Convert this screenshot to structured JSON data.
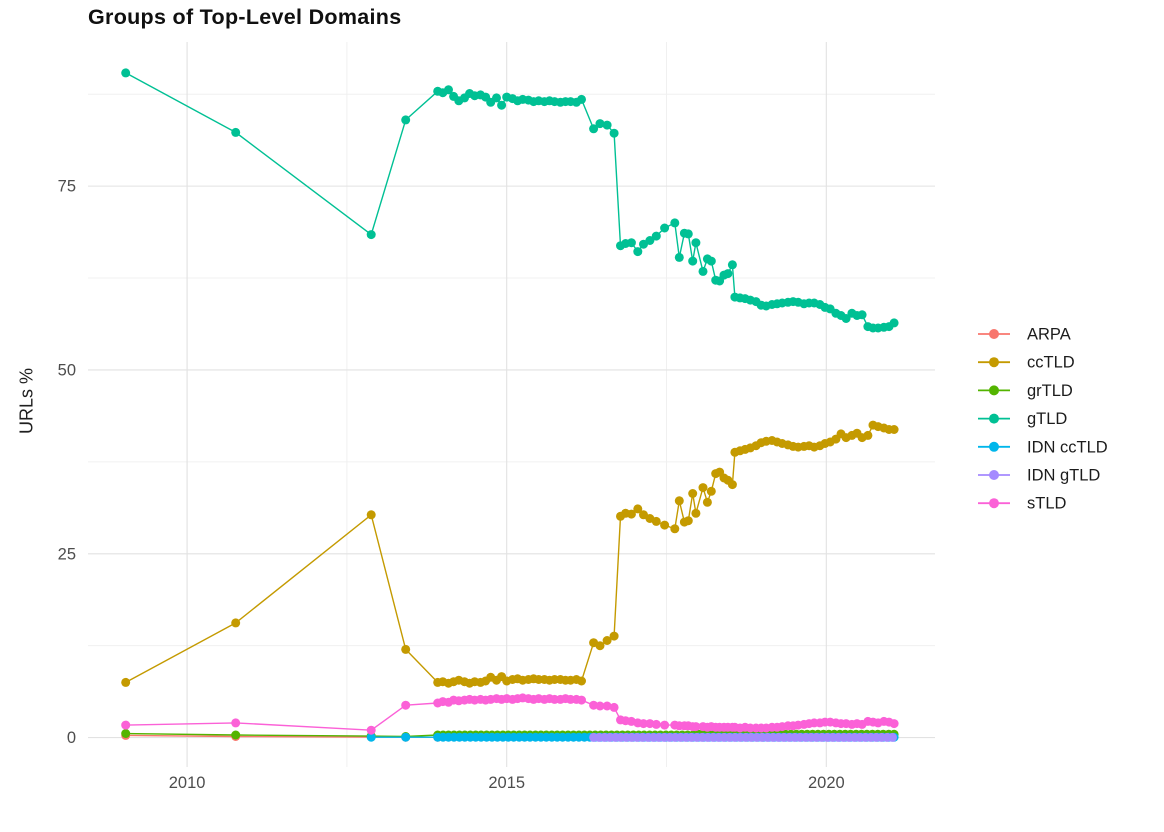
{
  "chart_data": {
    "type": "line",
    "title": "Groups of Top-Level Domains",
    "ylabel": "URLs %",
    "xlabel": "",
    "grid": true,
    "legend_position": "right",
    "x_ticks": [
      {
        "v": 2010,
        "label": "2010"
      },
      {
        "v": 2015,
        "label": "2015"
      },
      {
        "v": 2020,
        "label": "2020"
      }
    ],
    "x_minor_ticks": [
      2012.5,
      2017.5
    ],
    "y_ticks": [
      {
        "v": 0,
        "label": "0"
      },
      {
        "v": 25,
        "label": "25"
      },
      {
        "v": 50,
        "label": "50"
      },
      {
        "v": 75,
        "label": "75"
      }
    ],
    "y_minor_ticks": [
      12.5,
      37.5,
      62.5,
      87.5
    ],
    "xlim": [
      2008.45,
      2021.7
    ],
    "ylim": [
      -4.0,
      94.6
    ],
    "series": [
      {
        "name": "ARPA",
        "color": "#F8766D",
        "points": [
          [
            2009.04,
            0.3
          ],
          [
            2010.76,
            0.15
          ],
          [
            2012.88,
            0.08
          ],
          [
            2013.42,
            0.05
          ],
          [
            2013.92,
            0.05
          ]
        ]
      },
      {
        "name": "ccTLD",
        "color": "#C49A00",
        "points": [
          [
            2009.04,
            7.5
          ],
          [
            2010.76,
            15.6
          ],
          [
            2012.88,
            30.3
          ],
          [
            2013.42,
            12.0
          ],
          [
            2013.92,
            7.5
          ],
          [
            2014.0,
            7.6
          ],
          [
            2014.09,
            7.4
          ],
          [
            2014.17,
            7.6
          ],
          [
            2014.25,
            7.8
          ],
          [
            2014.34,
            7.6
          ],
          [
            2014.42,
            7.4
          ],
          [
            2014.5,
            7.6
          ],
          [
            2014.59,
            7.5
          ],
          [
            2014.67,
            7.7
          ],
          [
            2014.75,
            8.2
          ],
          [
            2014.84,
            7.8
          ],
          [
            2014.92,
            8.3
          ],
          [
            2015.0,
            7.7
          ],
          [
            2015.09,
            7.9
          ],
          [
            2015.17,
            8.0
          ],
          [
            2015.25,
            7.8
          ],
          [
            2015.34,
            7.9
          ],
          [
            2015.42,
            8.0
          ],
          [
            2015.5,
            7.9
          ],
          [
            2015.59,
            7.9
          ],
          [
            2015.67,
            7.8
          ],
          [
            2015.75,
            7.9
          ],
          [
            2015.84,
            7.9
          ],
          [
            2015.92,
            7.8
          ],
          [
            2016.0,
            7.8
          ],
          [
            2016.09,
            7.9
          ],
          [
            2016.17,
            7.7
          ],
          [
            2016.36,
            12.9
          ],
          [
            2016.46,
            12.5
          ],
          [
            2016.57,
            13.2
          ],
          [
            2016.68,
            13.8
          ],
          [
            2016.78,
            30.1
          ],
          [
            2016.86,
            30.5
          ],
          [
            2016.95,
            30.4
          ],
          [
            2017.05,
            31.1
          ],
          [
            2017.14,
            30.3
          ],
          [
            2017.24,
            29.8
          ],
          [
            2017.34,
            29.4
          ],
          [
            2017.47,
            28.9
          ],
          [
            2017.63,
            28.4
          ],
          [
            2017.7,
            32.2
          ],
          [
            2017.78,
            29.3
          ],
          [
            2017.84,
            29.5
          ],
          [
            2017.91,
            33.2
          ],
          [
            2017.96,
            30.5
          ],
          [
            2018.07,
            34.0
          ],
          [
            2018.14,
            32.0
          ],
          [
            2018.2,
            33.5
          ],
          [
            2018.27,
            35.9
          ],
          [
            2018.33,
            36.1
          ],
          [
            2018.4,
            35.3
          ],
          [
            2018.46,
            35.0
          ],
          [
            2018.53,
            34.4
          ],
          [
            2018.57,
            38.8
          ],
          [
            2018.65,
            39.0
          ],
          [
            2018.73,
            39.2
          ],
          [
            2018.81,
            39.4
          ],
          [
            2018.9,
            39.7
          ],
          [
            2018.98,
            40.1
          ],
          [
            2019.06,
            40.3
          ],
          [
            2019.15,
            40.4
          ],
          [
            2019.23,
            40.2
          ],
          [
            2019.31,
            40.0
          ],
          [
            2019.4,
            39.8
          ],
          [
            2019.48,
            39.6
          ],
          [
            2019.56,
            39.5
          ],
          [
            2019.65,
            39.6
          ],
          [
            2019.73,
            39.7
          ],
          [
            2019.81,
            39.5
          ],
          [
            2019.9,
            39.7
          ],
          [
            2019.98,
            40.0
          ],
          [
            2020.06,
            40.2
          ],
          [
            2020.15,
            40.6
          ],
          [
            2020.23,
            41.3
          ],
          [
            2020.31,
            40.8
          ],
          [
            2020.4,
            41.1
          ],
          [
            2020.48,
            41.4
          ],
          [
            2020.56,
            40.8
          ],
          [
            2020.65,
            41.1
          ],
          [
            2020.73,
            42.5
          ],
          [
            2020.81,
            42.3
          ],
          [
            2020.9,
            42.1
          ],
          [
            2020.98,
            41.9
          ],
          [
            2021.06,
            41.9
          ]
        ]
      },
      {
        "name": "grTLD",
        "color": "#53B400",
        "points": [
          [
            2009.04,
            0.55
          ],
          [
            2010.76,
            0.35
          ],
          [
            2012.88,
            0.2
          ],
          [
            2013.42,
            0.15
          ]
        ],
        "dense": [
          {
            "from": 2013.92,
            "to": 2017.95,
            "step": 0.085,
            "value": 0.35
          },
          {
            "from": 2018.0,
            "to": 2021.06,
            "step": 0.085,
            "value": 0.45
          }
        ]
      },
      {
        "name": "gTLD",
        "color": "#00C094",
        "points": [
          [
            2009.04,
            90.4
          ],
          [
            2010.76,
            82.3
          ],
          [
            2012.88,
            68.4
          ],
          [
            2013.42,
            84.0
          ],
          [
            2013.92,
            87.9
          ],
          [
            2014.0,
            87.7
          ],
          [
            2014.09,
            88.1
          ],
          [
            2014.17,
            87.2
          ],
          [
            2014.25,
            86.6
          ],
          [
            2014.34,
            87.0
          ],
          [
            2014.42,
            87.6
          ],
          [
            2014.5,
            87.3
          ],
          [
            2014.59,
            87.4
          ],
          [
            2014.67,
            87.1
          ],
          [
            2014.75,
            86.4
          ],
          [
            2014.84,
            87.0
          ],
          [
            2014.92,
            86.0
          ],
          [
            2015.0,
            87.1
          ],
          [
            2015.09,
            86.9
          ],
          [
            2015.17,
            86.6
          ],
          [
            2015.25,
            86.8
          ],
          [
            2015.34,
            86.7
          ],
          [
            2015.42,
            86.5
          ],
          [
            2015.5,
            86.6
          ],
          [
            2015.59,
            86.5
          ],
          [
            2015.67,
            86.6
          ],
          [
            2015.75,
            86.5
          ],
          [
            2015.84,
            86.4
          ],
          [
            2015.92,
            86.5
          ],
          [
            2016.0,
            86.5
          ],
          [
            2016.09,
            86.4
          ],
          [
            2016.17,
            86.8
          ],
          [
            2016.36,
            82.8
          ],
          [
            2016.46,
            83.5
          ],
          [
            2016.57,
            83.3
          ],
          [
            2016.68,
            82.2
          ],
          [
            2016.78,
            66.9
          ],
          [
            2016.86,
            67.2
          ],
          [
            2016.95,
            67.3
          ],
          [
            2017.05,
            66.1
          ],
          [
            2017.14,
            67.1
          ],
          [
            2017.24,
            67.6
          ],
          [
            2017.34,
            68.2
          ],
          [
            2017.47,
            69.3
          ],
          [
            2017.63,
            70.0
          ],
          [
            2017.7,
            65.3
          ],
          [
            2017.78,
            68.6
          ],
          [
            2017.84,
            68.5
          ],
          [
            2017.91,
            64.8
          ],
          [
            2017.96,
            67.3
          ],
          [
            2018.07,
            63.4
          ],
          [
            2018.14,
            65.1
          ],
          [
            2018.2,
            64.8
          ],
          [
            2018.27,
            62.2
          ],
          [
            2018.33,
            62.1
          ],
          [
            2018.4,
            62.9
          ],
          [
            2018.46,
            63.1
          ],
          [
            2018.53,
            64.3
          ],
          [
            2018.57,
            59.9
          ],
          [
            2018.65,
            59.8
          ],
          [
            2018.73,
            59.7
          ],
          [
            2018.81,
            59.5
          ],
          [
            2018.9,
            59.3
          ],
          [
            2018.98,
            58.8
          ],
          [
            2019.06,
            58.7
          ],
          [
            2019.15,
            58.9
          ],
          [
            2019.23,
            59.0
          ],
          [
            2019.31,
            59.1
          ],
          [
            2019.4,
            59.2
          ],
          [
            2019.48,
            59.3
          ],
          [
            2019.56,
            59.2
          ],
          [
            2019.65,
            59.0
          ],
          [
            2019.73,
            59.1
          ],
          [
            2019.81,
            59.1
          ],
          [
            2019.9,
            58.9
          ],
          [
            2019.98,
            58.5
          ],
          [
            2020.06,
            58.3
          ],
          [
            2020.15,
            57.7
          ],
          [
            2020.23,
            57.4
          ],
          [
            2020.31,
            57.0
          ],
          [
            2020.4,
            57.7
          ],
          [
            2020.48,
            57.4
          ],
          [
            2020.56,
            57.5
          ],
          [
            2020.65,
            55.9
          ],
          [
            2020.73,
            55.7
          ],
          [
            2020.81,
            55.7
          ],
          [
            2020.9,
            55.8
          ],
          [
            2020.98,
            55.9
          ],
          [
            2021.06,
            56.4
          ]
        ]
      },
      {
        "name": "IDN ccTLD",
        "color": "#00B6EB",
        "points": [
          [
            2012.88,
            0.05
          ],
          [
            2013.42,
            0.05
          ]
        ],
        "dense": [
          {
            "from": 2013.92,
            "to": 2021.06,
            "step": 0.085,
            "value": 0.05
          }
        ]
      },
      {
        "name": "IDN gTLD",
        "color": "#A58AFF",
        "points": [],
        "dense": [
          {
            "from": 2016.36,
            "to": 2021.06,
            "step": 0.085,
            "value": 0.02
          }
        ]
      },
      {
        "name": "sTLD",
        "color": "#FB61D7",
        "points": [
          [
            2009.04,
            1.7
          ],
          [
            2010.76,
            2.0
          ],
          [
            2012.88,
            1.0
          ],
          [
            2013.42,
            4.4
          ],
          [
            2013.92,
            4.7
          ],
          [
            2014.0,
            4.9
          ],
          [
            2014.09,
            4.8
          ],
          [
            2014.17,
            5.1
          ],
          [
            2014.25,
            5.0
          ],
          [
            2014.34,
            5.1
          ],
          [
            2014.42,
            5.2
          ],
          [
            2014.5,
            5.1
          ],
          [
            2014.59,
            5.2
          ],
          [
            2014.67,
            5.1
          ],
          [
            2014.75,
            5.2
          ],
          [
            2014.84,
            5.3
          ],
          [
            2014.92,
            5.2
          ],
          [
            2015.0,
            5.3
          ],
          [
            2015.09,
            5.2
          ],
          [
            2015.17,
            5.3
          ],
          [
            2015.25,
            5.4
          ],
          [
            2015.34,
            5.3
          ],
          [
            2015.42,
            5.2
          ],
          [
            2015.5,
            5.3
          ],
          [
            2015.59,
            5.2
          ],
          [
            2015.67,
            5.3
          ],
          [
            2015.75,
            5.2
          ],
          [
            2015.84,
            5.2
          ],
          [
            2015.92,
            5.3
          ],
          [
            2016.0,
            5.2
          ],
          [
            2016.09,
            5.2
          ],
          [
            2016.17,
            5.1
          ],
          [
            2016.36,
            4.4
          ],
          [
            2016.46,
            4.3
          ],
          [
            2016.57,
            4.3
          ],
          [
            2016.68,
            4.1
          ],
          [
            2016.78,
            2.4
          ],
          [
            2016.86,
            2.3
          ],
          [
            2016.95,
            2.2
          ],
          [
            2017.05,
            2.0
          ],
          [
            2017.14,
            1.9
          ],
          [
            2017.24,
            1.9
          ],
          [
            2017.34,
            1.8
          ],
          [
            2017.47,
            1.7
          ],
          [
            2017.63,
            1.7
          ],
          [
            2017.7,
            1.6
          ],
          [
            2017.78,
            1.6
          ],
          [
            2017.84,
            1.6
          ],
          [
            2017.91,
            1.5
          ],
          [
            2017.96,
            1.5
          ],
          [
            2018.07,
            1.5
          ],
          [
            2018.14,
            1.4
          ],
          [
            2018.2,
            1.5
          ],
          [
            2018.27,
            1.4
          ],
          [
            2018.33,
            1.4
          ],
          [
            2018.4,
            1.4
          ],
          [
            2018.46,
            1.4
          ],
          [
            2018.53,
            1.4
          ],
          [
            2018.57,
            1.4
          ],
          [
            2018.65,
            1.3
          ],
          [
            2018.73,
            1.4
          ],
          [
            2018.81,
            1.3
          ],
          [
            2018.9,
            1.3
          ],
          [
            2018.98,
            1.3
          ],
          [
            2019.06,
            1.3
          ],
          [
            2019.15,
            1.4
          ],
          [
            2019.23,
            1.4
          ],
          [
            2019.31,
            1.5
          ],
          [
            2019.4,
            1.6
          ],
          [
            2019.48,
            1.6
          ],
          [
            2019.56,
            1.7
          ],
          [
            2019.65,
            1.8
          ],
          [
            2019.73,
            1.9
          ],
          [
            2019.81,
            2.0
          ],
          [
            2019.9,
            2.0
          ],
          [
            2019.98,
            2.1
          ],
          [
            2020.06,
            2.1
          ],
          [
            2020.15,
            2.0
          ],
          [
            2020.23,
            1.9
          ],
          [
            2020.31,
            1.9
          ],
          [
            2020.4,
            1.8
          ],
          [
            2020.48,
            1.9
          ],
          [
            2020.56,
            1.8
          ],
          [
            2020.65,
            2.2
          ],
          [
            2020.73,
            2.1
          ],
          [
            2020.81,
            2.0
          ],
          [
            2020.9,
            2.2
          ],
          [
            2020.98,
            2.1
          ],
          [
            2021.06,
            1.9
          ]
        ]
      }
    ],
    "colors": {
      "grid_major": "#e2e2e2",
      "grid_minor": "#f0f0f0",
      "tick_text": "#4d4d4d",
      "title_text": "#101010",
      "legend_text": "#1c1c1c"
    }
  }
}
